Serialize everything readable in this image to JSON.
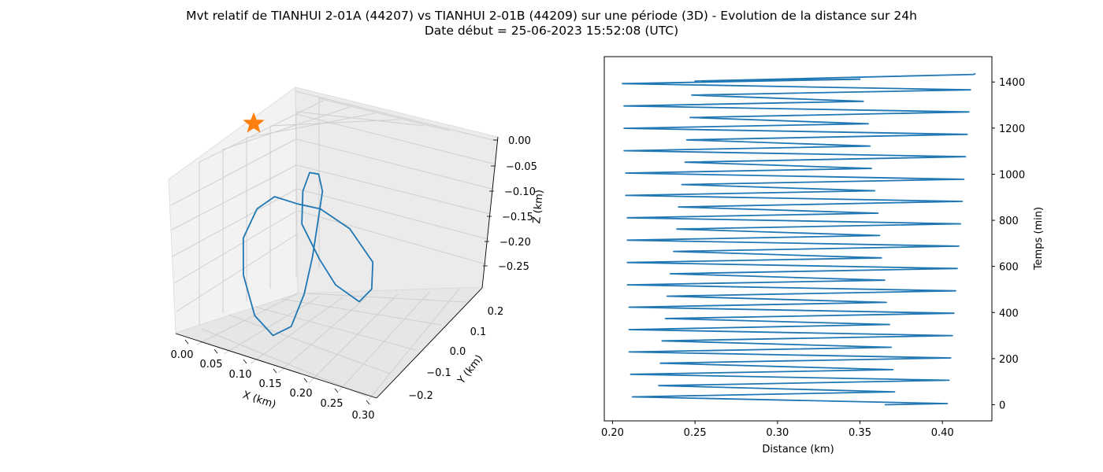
{
  "figure": {
    "title_line1": "Mvt relatif de TIANHUI 2-01A (44207) vs TIANHUI 2-01B (44209) sur une période (3D) - Evolution de la distance sur 24h",
    "title_line2": "Date début = 25-06-2023 15:52:08 (UTC)"
  },
  "colors": {
    "line": "#1f77b4",
    "marker": "#ff7f0e",
    "pane": "#f2f2f2",
    "grid": "#cfcfcf"
  },
  "chart_data": [
    {
      "type": "line3d",
      "xlabel": "X (km)",
      "ylabel": "Y (km)",
      "zlabel": "Z (km)",
      "x_ticks": [
        "0.00",
        "0.05",
        "0.10",
        "0.15",
        "0.20",
        "0.25",
        "0.30"
      ],
      "y_ticks": [
        "−0.2",
        "−0.1",
        "0.0",
        "0.1",
        "0.2"
      ],
      "z_ticks": [
        "0.00",
        "−0.05",
        "−0.10",
        "−0.15",
        "−0.20",
        "−0.25"
      ],
      "xlim": [
        0.0,
        0.3
      ],
      "ylim": [
        -0.25,
        0.25
      ],
      "zlim": [
        -0.28,
        0.0
      ],
      "marker": {
        "shape": "star",
        "x": 0.0,
        "y": 0.0,
        "z": 0.0
      },
      "points": [
        [
          0.092,
          0.127,
          -0.147
        ],
        [
          0.146,
          0.12,
          -0.141
        ],
        [
          0.221,
          0.064,
          -0.142
        ],
        [
          0.28,
          0.017,
          -0.171
        ],
        [
          0.283,
          -0.041,
          -0.199
        ],
        [
          0.256,
          -0.066,
          -0.219
        ],
        [
          0.199,
          -0.055,
          -0.207
        ],
        [
          0.155,
          0.003,
          -0.19
        ],
        [
          0.106,
          0.08,
          -0.164
        ],
        [
          0.103,
          0.137,
          -0.126
        ],
        [
          0.116,
          0.168,
          -0.101
        ],
        [
          0.137,
          0.169,
          -0.099
        ],
        [
          0.149,
          0.141,
          -0.117
        ],
        [
          0.145,
          0.065,
          -0.15
        ],
        [
          0.139,
          0.001,
          -0.189
        ],
        [
          0.126,
          -0.066,
          -0.235
        ],
        [
          0.101,
          -0.127,
          -0.278
        ],
        [
          0.061,
          -0.159,
          -0.293
        ],
        [
          0.016,
          -0.141,
          -0.275
        ],
        [
          -0.018,
          -0.066,
          -0.236
        ],
        [
          -0.025,
          0.005,
          -0.196
        ],
        [
          0.001,
          0.071,
          -0.16
        ],
        [
          0.039,
          0.106,
          -0.141
        ],
        [
          0.092,
          0.127,
          -0.147
        ]
      ]
    },
    {
      "type": "line",
      "xlabel": "Distance (km)",
      "ylabel": "Temps (min)",
      "xlim": [
        0.195,
        0.43
      ],
      "ylim": [
        -70,
        1510
      ],
      "x_ticks": [
        0.2,
        0.25,
        0.3,
        0.35,
        0.4
      ],
      "x_tick_labels": [
        "0.20",
        "0.25",
        "0.30",
        "0.35",
        "0.40"
      ],
      "y_ticks": [
        0,
        200,
        400,
        600,
        800,
        1000,
        1200,
        1400
      ],
      "y_tick_labels": [
        "0",
        "200",
        "400",
        "600",
        "800",
        "1000",
        "1200",
        "1400"
      ],
      "y_axis_position": "right",
      "series": [
        {
          "x": [
            0.365,
            0.403,
            0.212,
            0.371,
            0.228,
            0.404,
            0.211,
            0.37,
            0.229,
            0.405,
            0.21,
            0.369,
            0.23,
            0.406,
            0.21,
            0.368,
            0.232,
            0.407,
            0.21,
            0.366,
            0.233,
            0.408,
            0.209,
            0.365,
            0.235,
            0.409,
            0.209,
            0.363,
            0.237,
            0.41,
            0.209,
            0.362,
            0.239,
            0.411,
            0.209,
            0.361,
            0.24,
            0.412,
            0.208,
            0.359,
            0.242,
            0.413,
            0.208,
            0.357,
            0.244,
            0.414,
            0.207,
            0.356,
            0.245,
            0.415,
            0.207,
            0.355,
            0.247,
            0.416,
            0.207,
            0.352,
            0.248,
            0.417,
            0.206,
            0.35,
            0.25,
            0.419,
            0.42
          ],
          "y": [
            0,
            5,
            34,
            56,
            83,
            106,
            132,
            152,
            180,
            203,
            229,
            249,
            277,
            300,
            326,
            348,
            374,
            397,
            423,
            444,
            471,
            494,
            520,
            540,
            568,
            591,
            617,
            637,
            665,
            688,
            714,
            734,
            762,
            785,
            811,
            831,
            858,
            882,
            908,
            928,
            955,
            978,
            1005,
            1025,
            1052,
            1076,
            1102,
            1122,
            1149,
            1173,
            1199,
            1219,
            1246,
            1270,
            1296,
            1316,
            1343,
            1366,
            1393,
            1412,
            1404,
            1433,
            1437
          ]
        }
      ]
    }
  ]
}
